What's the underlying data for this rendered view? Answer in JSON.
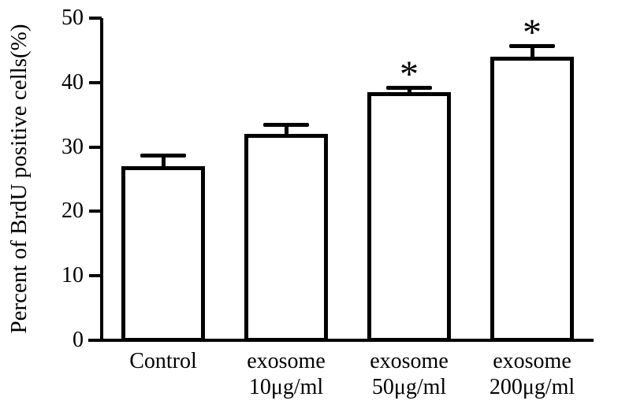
{
  "chart_data": {
    "type": "bar",
    "title": "",
    "ylabel": "Percent of BrdU positive cells(%)",
    "xlabel": "",
    "ylim": [
      0,
      50
    ],
    "yticks": [
      0,
      10,
      20,
      30,
      40,
      50
    ],
    "categories": [
      [
        "Control"
      ],
      [
        "exosome",
        "10μg/ml"
      ],
      [
        "exosome",
        "50μg/ml"
      ],
      [
        "exosome",
        "200μg/ml"
      ]
    ],
    "values": [
      27,
      32,
      38.5,
      44
    ],
    "errors_upper": [
      1.7,
      1.5,
      0.7,
      1.7
    ],
    "significance_markers": [
      "",
      "",
      "*",
      "*"
    ],
    "grid": false,
    "legend_position": "none",
    "bar_fill_color": "#ffffff",
    "bar_border_color": "#000000",
    "axis_color": "#000000",
    "text_color": "#000000",
    "background_color": "#ffffff"
  }
}
